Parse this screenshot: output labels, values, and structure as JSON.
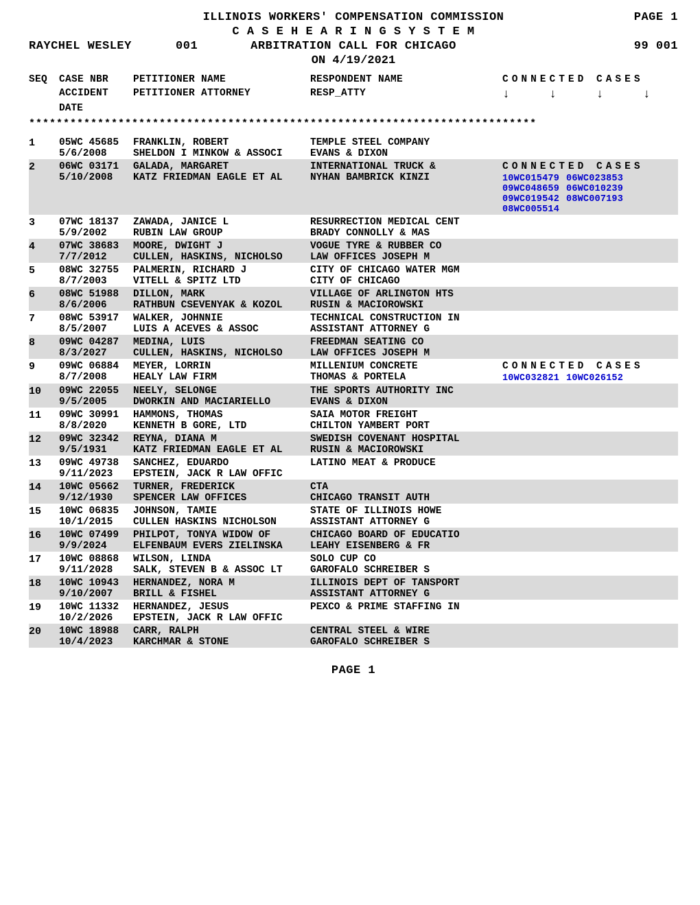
{
  "header": {
    "title_line": "ILLINOIS WORKERS' COMPENSATION COMMISSION",
    "page_label": "PAGE 1",
    "case_line": "C A S E    H E A R I N G    S Y S T E M",
    "presiding_name": "RAYCHEL WESLEY",
    "session_code": "001",
    "call_label": "ARBITRATION CALL FOR CHICAGO",
    "call_code": "99 001",
    "on_date": "ON 4/19/2021"
  },
  "columns": {
    "seq": "SEQ",
    "case_nbr": "CASE NBR",
    "petitioner_name": "PETITIONER NAME",
    "respondent_name": "RESPONDENT NAME",
    "connected_cases": "CONNECTED  CASES",
    "accident": "ACCIDENT",
    "date": "DATE",
    "petitioner_attorney": "PETITIONER ATTORNEY",
    "resp_atty": "RESP_ATTY",
    "arrow": "↓"
  },
  "star_row": "**************************************************************************",
  "rows": [
    {
      "seq": "1",
      "line1": {
        "case_nbr": "05WC 45685",
        "petn": "FRANKLIN, ROBERT",
        "resp": "TEMPLE STEEL COMPANY",
        "connected": "",
        "codes": []
      },
      "line2": {
        "acc_date": "5/6/2008",
        "pet_att": "SHELDON I MINKOW & ASSOCI",
        "resp_att": "EVANS & DIXON"
      }
    },
    {
      "seq": "2",
      "line1": {
        "case_nbr": "06WC 03171",
        "petn": "GALADA, MARGARET",
        "resp": "INTERNATIONAL TRUCK &",
        "connected": "CONNECTED  CASES",
        "codes": []
      },
      "line2": {
        "acc_date": "5/10/2008",
        "pet_att": "KATZ FRIEDMAN EAGLE ET AL",
        "resp_att": "NYHAN BAMBRICK KINZI",
        "codes": [
          "10WC015479",
          "06WC023853",
          "09WC048659",
          "06WC010239",
          "09WC019542",
          "08WC007193",
          "08WC005514"
        ]
      }
    },
    {
      "seq": "3",
      "line1": {
        "case_nbr": "07WC 18137",
        "petn": "ZAWADA, JANICE L",
        "resp": "RESURRECTION MEDICAL CENT",
        "connected": "",
        "codes": []
      },
      "line2": {
        "acc_date": "5/9/2002",
        "pet_att": "RUBIN LAW GROUP",
        "resp_att": "BRADY CONNOLLY & MAS"
      }
    },
    {
      "seq": "4",
      "line1": {
        "case_nbr": "07WC 38683",
        "petn": "MOORE, DWIGHT J",
        "resp": "VOGUE TYRE & RUBBER CO",
        "connected": "",
        "codes": []
      },
      "line2": {
        "acc_date": "7/7/2012",
        "pet_att": "CULLEN, HASKINS, NICHOLSO",
        "resp_att": "LAW OFFICES JOSEPH M"
      }
    },
    {
      "seq": "5",
      "line1": {
        "case_nbr": "08WC 32755",
        "petn": "PALMERIN, RICHARD J",
        "resp": "CITY OF CHICAGO WATER MGM",
        "connected": "",
        "codes": []
      },
      "line2": {
        "acc_date": "8/7/2003",
        "pet_att": "VITELL & SPITZ LTD",
        "resp_att": "CITY OF CHICAGO"
      }
    },
    {
      "seq": "6",
      "line1": {
        "case_nbr": "08WC 51988",
        "petn": "DILLON, MARK",
        "resp": "VILLAGE OF ARLINGTON HTS",
        "connected": "",
        "codes": []
      },
      "line2": {
        "acc_date": "8/6/2006",
        "pet_att": "RATHBUN CSEVENYAK & KOZOL",
        "resp_att": "RUSIN & MACIOROWSKI"
      }
    },
    {
      "seq": "7",
      "line1": {
        "case_nbr": "08WC 53917",
        "petn": "WALKER, JOHNNIE",
        "resp": "TECHNICAL CONSTRUCTION IN",
        "connected": "",
        "codes": []
      },
      "line2": {
        "acc_date": "8/5/2007",
        "pet_att": "LUIS A ACEVES & ASSOC",
        "resp_att": "ASSISTANT ATTORNEY G"
      }
    },
    {
      "seq": "8",
      "line1": {
        "case_nbr": "09WC 04287",
        "petn": "MEDINA, LUIS",
        "resp": "FREEDMAN SEATING CO",
        "connected": "",
        "codes": []
      },
      "line2": {
        "acc_date": "8/3/2027",
        "pet_att": "CULLEN, HASKINS, NICHOLSO",
        "resp_att": "LAW OFFICES JOSEPH M"
      }
    },
    {
      "seq": "9",
      "line1": {
        "case_nbr": "09WC 06884",
        "petn": "MEYER, LORRIN",
        "resp": "MILLENIUM CONCRETE",
        "connected": "CONNECTED  CASES",
        "codes": []
      },
      "line2": {
        "acc_date": "8/7/2008",
        "pet_att": "HEALY LAW FIRM",
        "resp_att": "THOMAS & PORTELA",
        "codes": [
          "10WC032821",
          "10WC026152"
        ]
      }
    },
    {
      "seq": "10",
      "line1": {
        "case_nbr": "09WC 22055",
        "petn": "NEELY, SELONGE",
        "resp": "THE SPORTS AUTHORITY INC",
        "connected": "",
        "codes": []
      },
      "line2": {
        "acc_date": "9/5/2005",
        "pet_att": "DWORKIN AND MACIARIELLO",
        "resp_att": "EVANS & DIXON"
      }
    },
    {
      "seq": "11",
      "line1": {
        "case_nbr": "09WC 30991",
        "petn": "HAMMONS, THOMAS",
        "resp": "SAIA MOTOR FREIGHT",
        "connected": "",
        "codes": []
      },
      "line2": {
        "acc_date": "8/8/2020",
        "pet_att": "KENNETH B GORE, LTD",
        "resp_att": "CHILTON YAMBERT PORT"
      }
    },
    {
      "seq": "12",
      "line1": {
        "case_nbr": "09WC 32342",
        "petn": "REYNA, DIANA M",
        "resp": "SWEDISH COVENANT HOSPITAL",
        "connected": "",
        "codes": []
      },
      "line2": {
        "acc_date": "9/5/1931",
        "pet_att": "KATZ FRIEDMAN EAGLE ET AL",
        "resp_att": "RUSIN & MACIOROWSKI"
      }
    },
    {
      "seq": "13",
      "line1": {
        "case_nbr": "09WC 49738",
        "petn": "SANCHEZ, EDUARDO",
        "resp": "LATINO MEAT & PRODUCE",
        "connected": "",
        "codes": []
      },
      "line2": {
        "acc_date": "9/11/2023",
        "pet_att": "EPSTEIN, JACK R LAW OFFIC",
        "resp_att": ""
      }
    },
    {
      "seq": "14",
      "line1": {
        "case_nbr": "10WC 05662",
        "petn": "TURNER, FREDERICK",
        "resp": "CTA",
        "connected": "",
        "codes": []
      },
      "line2": {
        "acc_date": "9/12/1930",
        "pet_att": "SPENCER LAW OFFICES",
        "resp_att": "CHICAGO TRANSIT AUTH"
      }
    },
    {
      "seq": "15",
      "line1": {
        "case_nbr": "10WC 06835",
        "petn": "JOHNSON, TAMIE",
        "resp": "STATE OF ILLINOIS HOWE",
        "connected": "",
        "codes": []
      },
      "line2": {
        "acc_date": "10/1/2015",
        "pet_att": "CULLEN HASKINS NICHOLSON",
        "resp_att": "ASSISTANT ATTORNEY G"
      }
    },
    {
      "seq": "16",
      "line1": {
        "case_nbr": "10WC 07499",
        "petn": "PHILPOT, TONYA WIDOW OF",
        "resp": "CHICAGO BOARD OF EDUCATIO",
        "connected": "",
        "codes": []
      },
      "line2": {
        "acc_date": "9/9/2024",
        "pet_att": "ELFENBAUM EVERS ZIELINSKA",
        "resp_att": "LEAHY EISENBERG & FR"
      }
    },
    {
      "seq": "17",
      "line1": {
        "case_nbr": "10WC 08868",
        "petn": "WILSON, LINDA",
        "resp": "SOLO CUP CO",
        "connected": "",
        "codes": []
      },
      "line2": {
        "acc_date": "9/11/2028",
        "pet_att": "SALK, STEVEN B & ASSOC LT",
        "resp_att": "GAROFALO SCHREIBER S"
      }
    },
    {
      "seq": "18",
      "line1": {
        "case_nbr": "10WC 10943",
        "petn": "HERNANDEZ, NORA M",
        "resp": "ILLINOIS DEPT OF TANSPORT",
        "connected": "",
        "codes": []
      },
      "line2": {
        "acc_date": "9/10/2007",
        "pet_att": "BRILL & FISHEL",
        "resp_att": "ASSISTANT ATTORNEY G"
      }
    },
    {
      "seq": "19",
      "line1": {
        "case_nbr": "10WC 11332",
        "petn": "HERNANDEZ, JESUS",
        "resp": "PEXCO & PRIME STAFFING IN",
        "connected": "",
        "codes": []
      },
      "line2": {
        "acc_date": "10/2/2026",
        "pet_att": "EPSTEIN, JACK R LAW OFFIC",
        "resp_att": ""
      }
    },
    {
      "seq": "20",
      "line1": {
        "case_nbr": "10WC 18988",
        "petn": "CARR, RALPH",
        "resp": "CENTRAL STEEL & WIRE",
        "connected": "",
        "codes": []
      },
      "line2": {
        "acc_date": "10/4/2023",
        "pet_att": "KARCHMAR & STONE",
        "resp_att": "GAROFALO SCHREIBER S"
      }
    }
  ],
  "footer": {
    "page_label": "PAGE 1"
  }
}
